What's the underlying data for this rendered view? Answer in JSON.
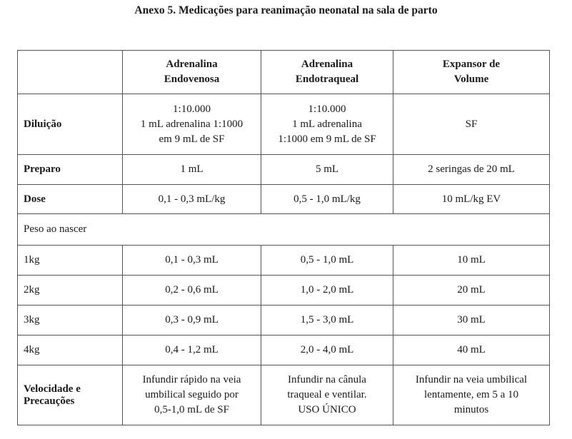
{
  "title": "Anexo 5. Medicações para reanimação neonatal na sala de parto",
  "table": {
    "header": [
      "",
      [
        "Adrenalina",
        "Endovenosa"
      ],
      [
        "Adrenalina",
        "Endotraqueal"
      ],
      [
        "Expansor de",
        "Volume"
      ]
    ],
    "rows": [
      {
        "label": "Diluição",
        "cells": [
          [
            "1:10.000",
            "1 mL adrenalina 1:1000",
            "em 9 mL de SF"
          ],
          [
            "1:10.000",
            "1 mL adrenalina",
            "1:1000 em 9 mL de SF"
          ],
          [
            "SF"
          ]
        ]
      },
      {
        "label": "Preparo",
        "cells": [
          [
            "1 mL"
          ],
          [
            "5 mL"
          ],
          [
            "2 seringas de 20 mL"
          ]
        ]
      },
      {
        "label": "Dose",
        "cells": [
          [
            "0,1 - 0,3 mL/kg"
          ],
          [
            "0,5 - 1,0 mL/kg"
          ],
          [
            "10 mL/kg EV"
          ]
        ]
      },
      {
        "span": "Peso ao nascer"
      },
      {
        "label": "1kg",
        "cells": [
          [
            "0,1 - 0,3 mL"
          ],
          [
            "0,5 - 1,0 mL"
          ],
          [
            "10 mL"
          ]
        ]
      },
      {
        "label": "2kg",
        "cells": [
          [
            "0,2 - 0,6 mL"
          ],
          [
            "1,0 - 2,0 mL"
          ],
          [
            "20 mL"
          ]
        ]
      },
      {
        "label": "3kg",
        "cells": [
          [
            "0,3 - 0,9 mL"
          ],
          [
            "1,5 - 3,0 mL"
          ],
          [
            "30 mL"
          ]
        ]
      },
      {
        "label": "4kg",
        "cells": [
          [
            "0,4 - 1,2 mL"
          ],
          [
            "2,0 - 4,0 mL"
          ],
          [
            "40 mL"
          ]
        ]
      },
      {
        "label": [
          "Velocidade e",
          "Precauções"
        ],
        "cells": [
          [
            "Infundir rápido na veia",
            "umbilical seguido por",
            "0,5-1,0 mL de SF"
          ],
          [
            "Infundir na cânula",
            "traqueal e ventilar.",
            "USO ÚNICO"
          ],
          [
            "Infundir na veia umbilical",
            "lentamente, em 5 a 10",
            "minutos"
          ]
        ]
      }
    ]
  }
}
